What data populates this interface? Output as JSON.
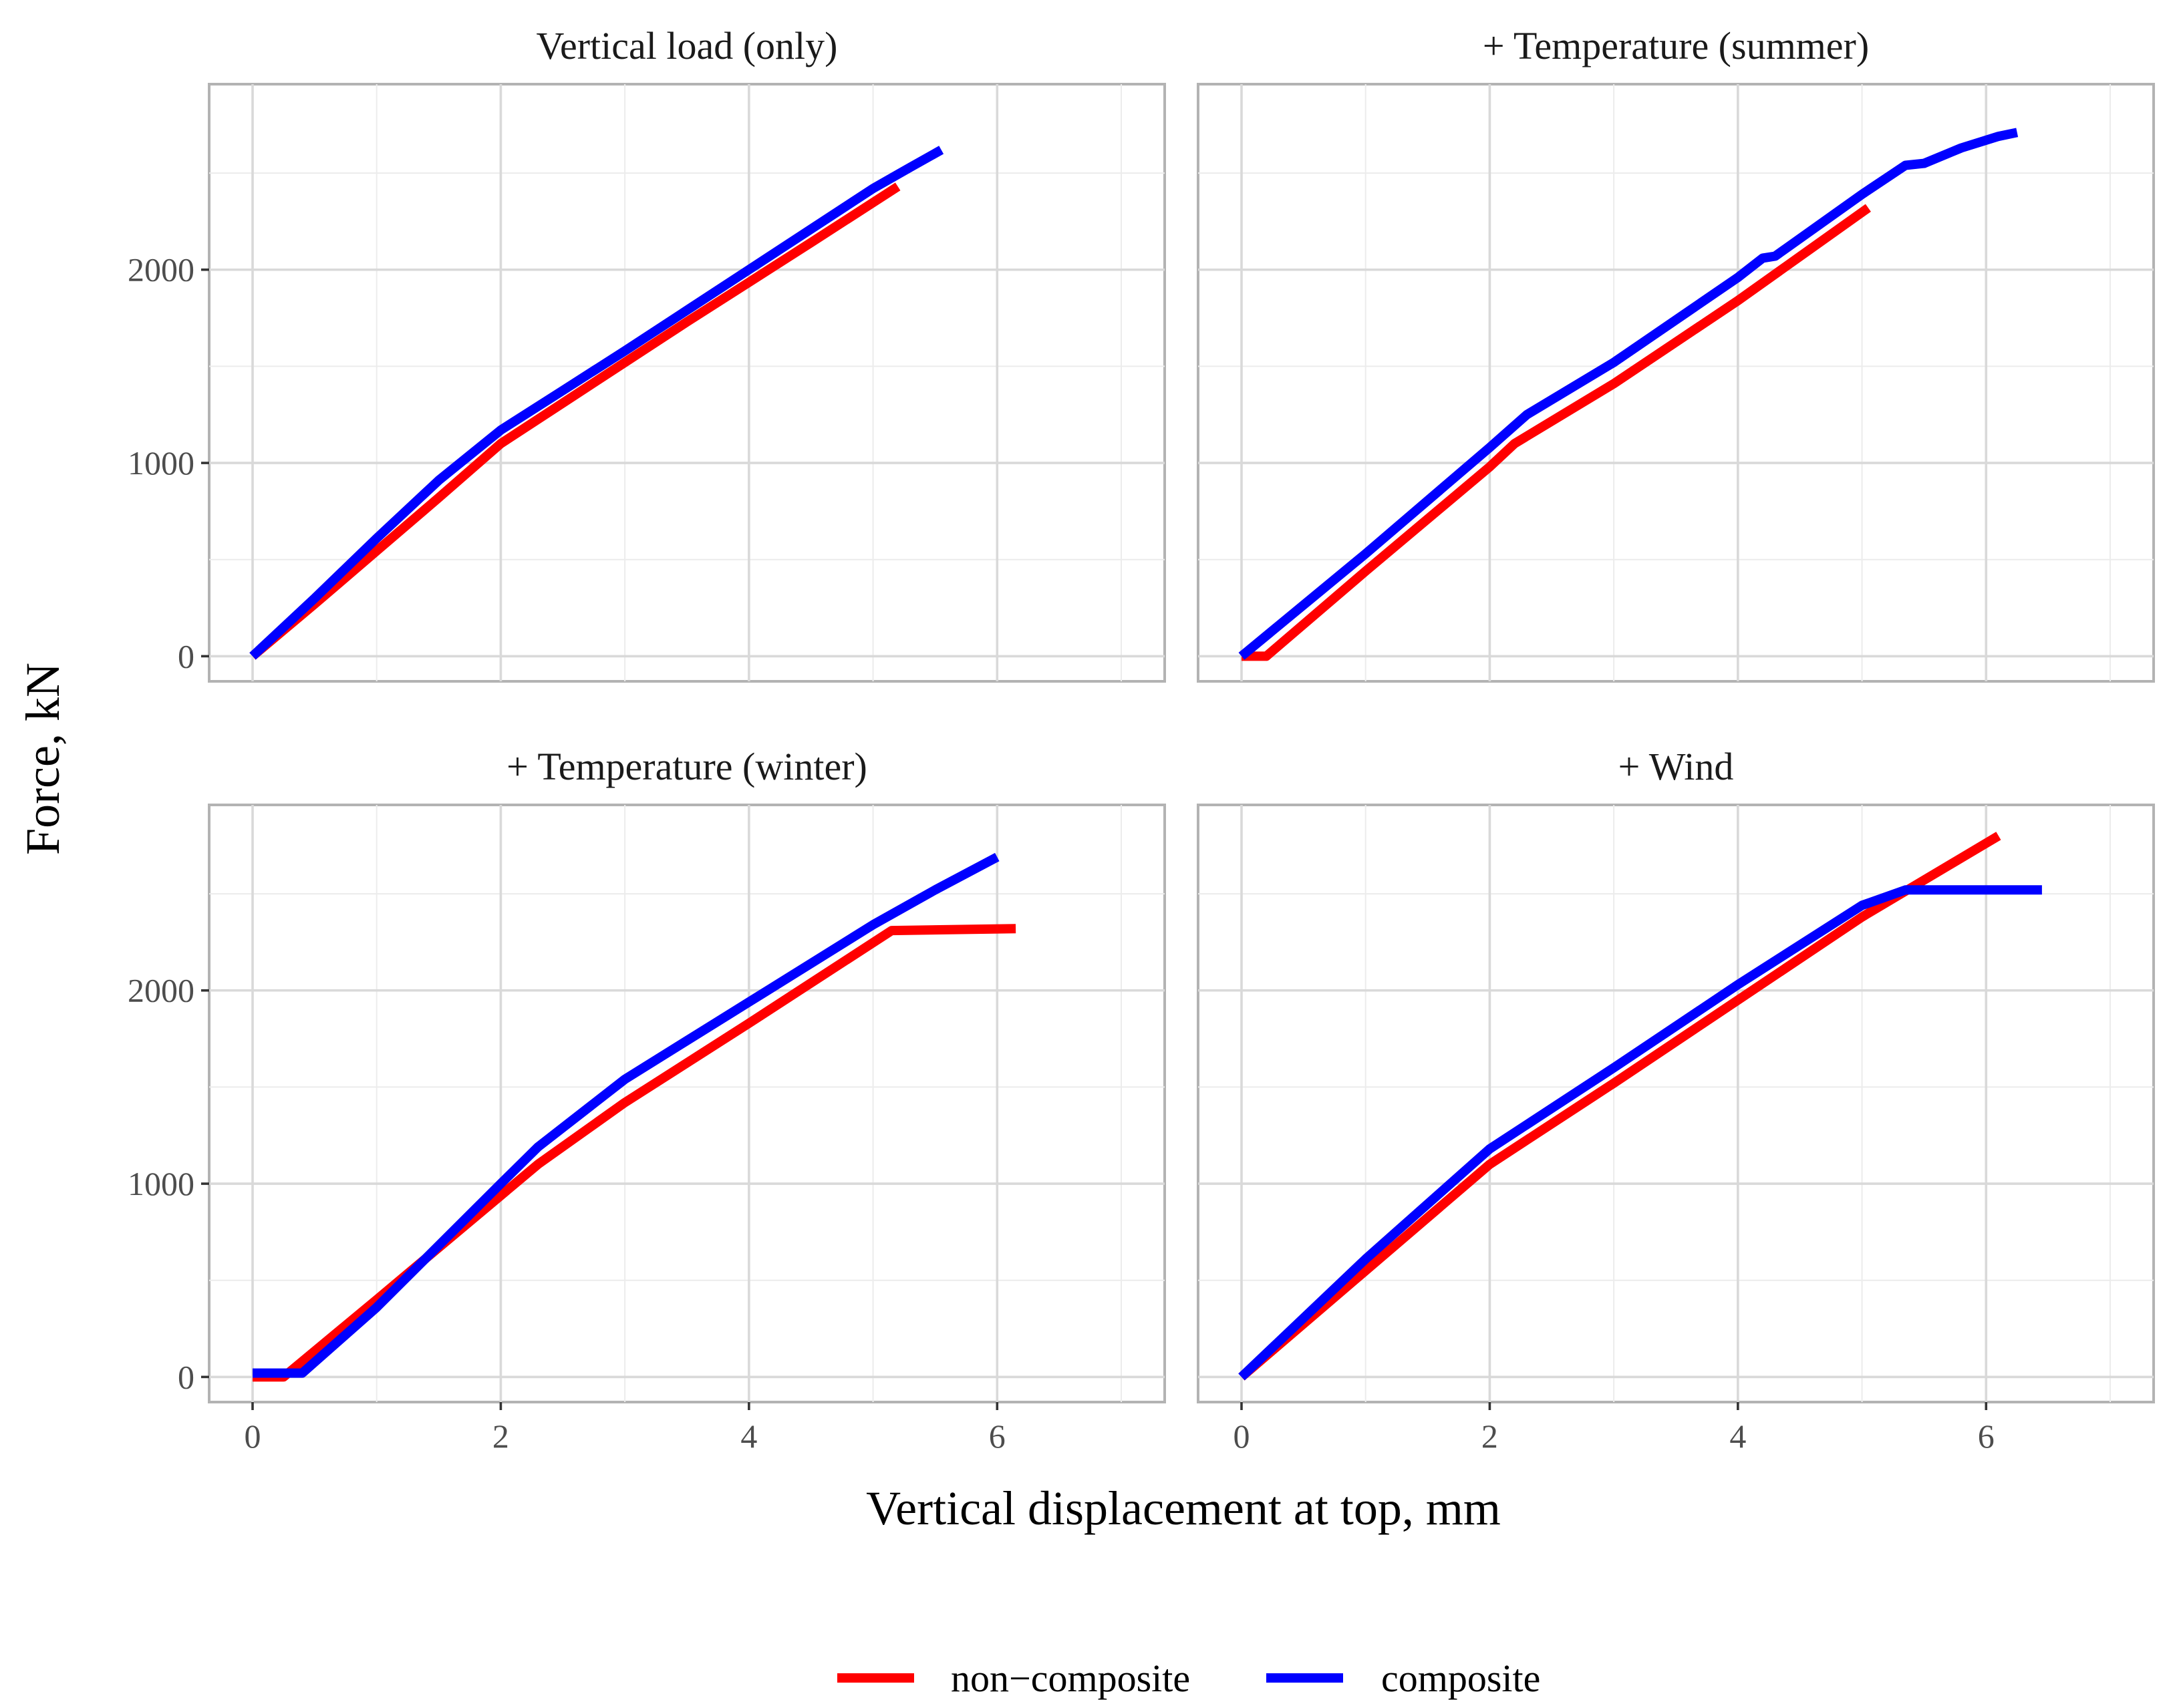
{
  "chart_data": {
    "type": "line",
    "xlabel": "Vertical displacement at top, mm",
    "ylabel": "Force, kN",
    "xlim": [
      -0.35,
      7.35
    ],
    "ylim": [
      -130,
      2960
    ],
    "x_ticks": [
      0,
      2,
      4,
      6
    ],
    "y_ticks": [
      0,
      1000,
      2000
    ],
    "grid": true,
    "legend_position": "bottom",
    "legend": [
      {
        "name": "non−composite",
        "color": "#ff0000"
      },
      {
        "name": "composite",
        "color": "#0000ff"
      }
    ],
    "panels": [
      {
        "title": "Vertical load (only)",
        "series": [
          {
            "name": "non−composite",
            "color": "#ff0000",
            "x": [
              0,
              0.5,
              1.0,
              1.5,
              2.0,
              2.5,
              3.0,
              3.5,
              4.0,
              4.5,
              5.2
            ],
            "y": [
              0,
              270,
              545,
              820,
              1100,
              1310,
              1520,
              1730,
              1935,
              2140,
              2430
            ]
          },
          {
            "name": "composite",
            "color": "#0000ff",
            "x": [
              0,
              0.5,
              1.0,
              1.5,
              2.0,
              2.5,
              3.0,
              3.5,
              4.0,
              4.5,
              5.0,
              5.3,
              5.55
            ],
            "y": [
              0,
              300,
              610,
              910,
              1170,
              1375,
              1580,
              1790,
              2000,
              2210,
              2420,
              2530,
              2620
            ]
          }
        ]
      },
      {
        "title": "+ Temperature (summer)",
        "series": [
          {
            "name": "non−composite",
            "color": "#ff0000",
            "x": [
              0,
              0.2,
              1.0,
              2.0,
              2.2,
              3.0,
              4.0,
              5.05
            ],
            "y": [
              0,
              0,
              440,
              980,
              1100,
              1410,
              1840,
              2320
            ]
          },
          {
            "name": "composite",
            "color": "#0000ff",
            "x": [
              0,
              1.0,
              2.0,
              2.3,
              3.0,
              4.0,
              4.2,
              4.3,
              5.0,
              5.35,
              5.5,
              5.8,
              6.1,
              6.25
            ],
            "y": [
              0,
              530,
              1080,
              1250,
              1520,
              1960,
              2060,
              2070,
              2390,
              2540,
              2550,
              2630,
              2690,
              2710
            ]
          }
        ]
      },
      {
        "title": "+ Temperature (winter)",
        "series": [
          {
            "name": "non−composite",
            "color": "#ff0000",
            "x": [
              0,
              0.25,
              1.0,
              2.3,
              3.0,
              4.0,
              5.15,
              6.15
            ],
            "y": [
              0,
              0,
              400,
              1100,
              1420,
              1830,
              2310,
              2320
            ]
          },
          {
            "name": "composite",
            "color": "#0000ff",
            "x": [
              0,
              0.4,
              1.0,
              2.0,
              2.3,
              3.0,
              4.0,
              5.0,
              5.5,
              6.0
            ],
            "y": [
              20,
              20,
              360,
              1000,
              1190,
              1540,
              1940,
              2340,
              2520,
              2690
            ]
          }
        ]
      },
      {
        "title": "+ Wind",
        "series": [
          {
            "name": "non−composite",
            "color": "#ff0000",
            "x": [
              0,
              1.0,
              2.0,
              3.0,
              4.0,
              5.0,
              6.1
            ],
            "y": [
              0,
              550,
              1100,
              1520,
              1950,
              2380,
              2800
            ]
          },
          {
            "name": "composite",
            "color": "#0000ff",
            "x": [
              0,
              1.0,
              2.0,
              3.0,
              4.0,
              5.0,
              5.35,
              6.0,
              6.45
            ],
            "y": [
              0,
              610,
              1180,
              1600,
              2030,
              2440,
              2520,
              2520,
              2520
            ]
          }
        ]
      }
    ]
  }
}
